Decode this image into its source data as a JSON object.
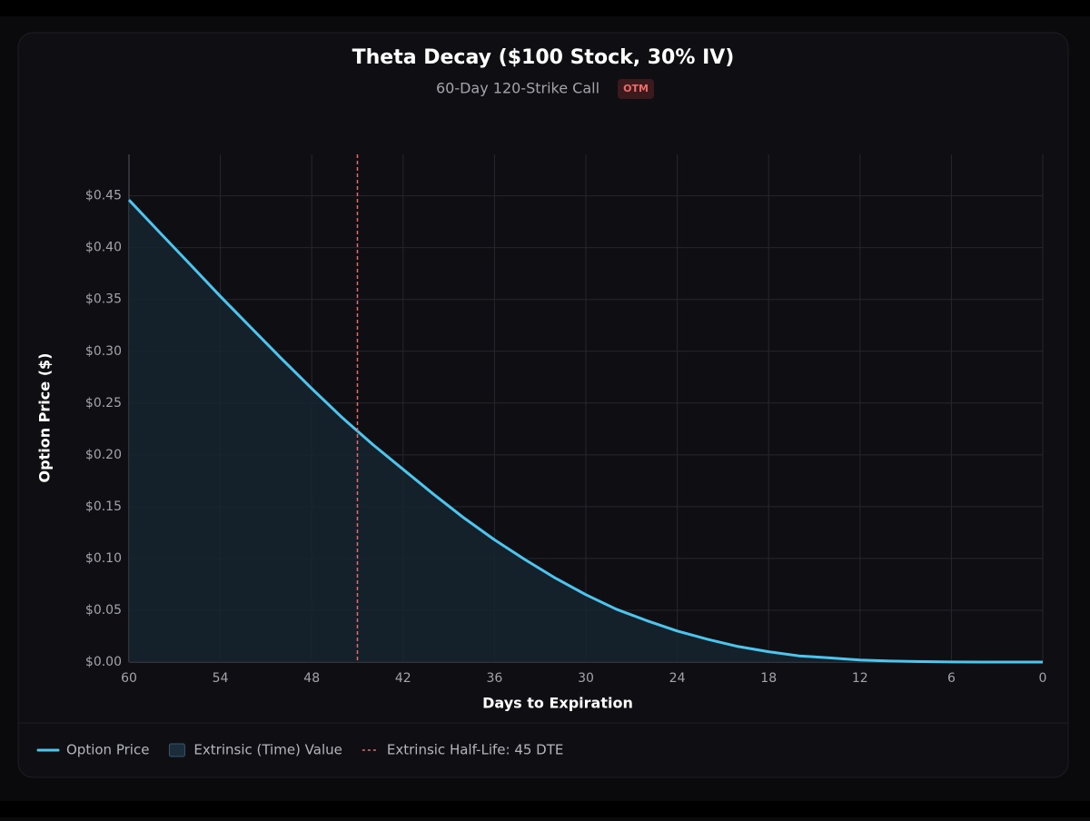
{
  "chart_data": {
    "type": "line",
    "title": "Theta Decay ($100 Stock, 30% IV)",
    "subtitle": "60-Day 120-Strike Call",
    "badge": "OTM",
    "x_label": "Days to Expiration",
    "y_label": "Option Price ($)",
    "x": [
      60,
      58,
      56,
      54,
      52,
      50,
      48,
      46,
      44,
      42,
      40,
      38,
      36,
      34,
      32,
      30,
      28,
      26,
      24,
      22,
      20,
      18,
      16,
      14,
      12,
      10,
      8,
      6,
      4,
      2,
      0
    ],
    "series": [
      {
        "name": "Option Price",
        "color": "#4cc6ee",
        "values": [
          0.446,
          0.415,
          0.384,
          0.353,
          0.323,
          0.293,
          0.264,
          0.236,
          0.21,
          0.186,
          0.162,
          0.139,
          0.118,
          0.099,
          0.081,
          0.065,
          0.051,
          0.04,
          0.03,
          0.022,
          0.015,
          0.01,
          0.006,
          0.004,
          0.002,
          0.001,
          0.0004,
          0.0001,
          0,
          0,
          0
        ]
      }
    ],
    "area": {
      "name": "Extrinsic (Time) Value",
      "color": "#16242f"
    },
    "half_life": {
      "x": 45,
      "label": "Extrinsic Half-Life: 45 DTE",
      "color": "#e86a6a"
    },
    "xlim": [
      60,
      0
    ],
    "xticks": [
      60,
      54,
      48,
      42,
      36,
      30,
      24,
      18,
      12,
      6,
      0
    ],
    "ylim": [
      0,
      0.49
    ],
    "yticks": [
      {
        "value": 0,
        "label": "$0.00"
      },
      {
        "value": 0.05,
        "label": "$0.05"
      },
      {
        "value": 0.1,
        "label": "$0.10"
      },
      {
        "value": 0.15,
        "label": "$0.15"
      },
      {
        "value": 0.2,
        "label": "$0.20"
      },
      {
        "value": 0.25,
        "label": "$0.25"
      },
      {
        "value": 0.3,
        "label": "$0.30"
      },
      {
        "value": 0.35,
        "label": "$0.35"
      },
      {
        "value": 0.4,
        "label": "$0.40"
      },
      {
        "value": 0.45,
        "label": "$0.45"
      }
    ],
    "grid": true
  }
}
